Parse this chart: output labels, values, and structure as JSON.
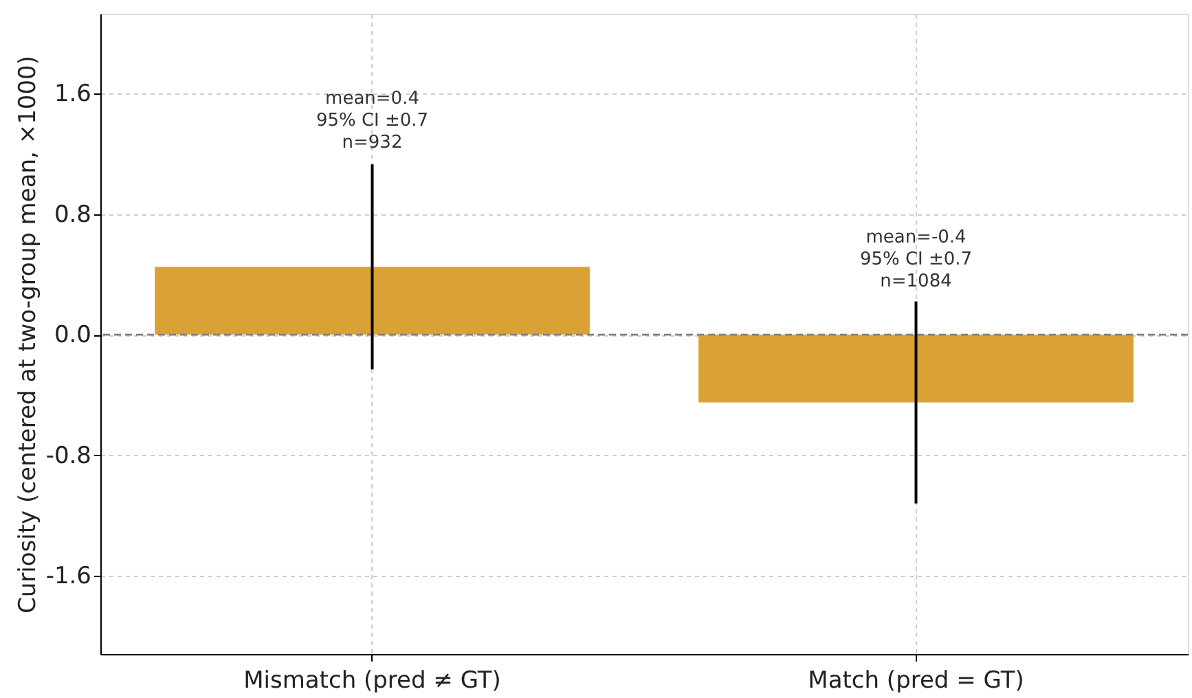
{
  "chart_data": {
    "type": "bar",
    "ylabel": "Curiosity (centered at two-group mean, ×1000)",
    "categories": [
      "Mismatch (pred ≠ GT)",
      "Match (pred = GT)"
    ],
    "values": [
      0.45,
      -0.45
    ],
    "color": "#daa236",
    "errors": [
      0.68,
      0.67
    ],
    "ylim": [
      -2.12,
      2.13
    ],
    "yticks": [
      -1.6,
      -0.8,
      {
        "value": 0,
        "label": "0.0"
      },
      0.8,
      1.6
    ],
    "ref_lines": [
      {
        "axis": "y",
        "value": 0,
        "color": "#808080",
        "line_style": "dashed"
      }
    ],
    "annotations": [
      {
        "text": "mean=0.4\n95% CI ±0.7\nn=932",
        "x": "Mismatch (pred ≠ GT)",
        "y": 1.14
      },
      {
        "text": "mean=-0.4\n95% CI ±0.7\nn=1084",
        "x": "Match (pred = GT)",
        "y": 0.22
      }
    ],
    "grid": true
  }
}
